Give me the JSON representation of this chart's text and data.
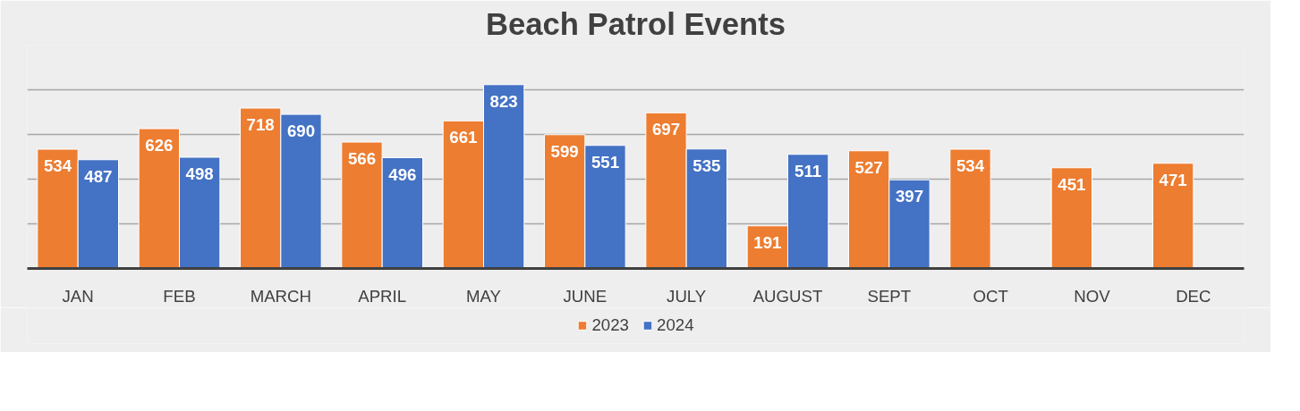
{
  "chart_data": {
    "type": "bar",
    "title": "Beach Patrol Events",
    "categories": [
      "JAN",
      "FEB",
      "MARCH",
      "APRIL",
      "MAY",
      "JUNE",
      "JULY",
      "AUGUST",
      "SEPT",
      "OCT",
      "NOV",
      "DEC"
    ],
    "series": [
      {
        "name": "2023",
        "color": "#ed7d31",
        "values": [
          534,
          626,
          718,
          566,
          661,
          599,
          697,
          191,
          527,
          534,
          451,
          471
        ]
      },
      {
        "name": "2024",
        "color": "#4472c4",
        "values": [
          487,
          498,
          690,
          496,
          823,
          551,
          535,
          511,
          397,
          null,
          null,
          null
        ]
      }
    ],
    "ylim": [
      0,
      1000
    ],
    "yticks": [
      {
        "value": 0,
        "label": null
      },
      {
        "value": 200,
        "label": null
      },
      {
        "value": 400,
        "label": null
      },
      {
        "value": 600,
        "label": null
      },
      {
        "value": 800,
        "label": null
      },
      {
        "value": 1000,
        "label": null
      }
    ],
    "tick_labels": "x",
    "grid": "y",
    "data_labels": true,
    "legend": "bottom"
  }
}
